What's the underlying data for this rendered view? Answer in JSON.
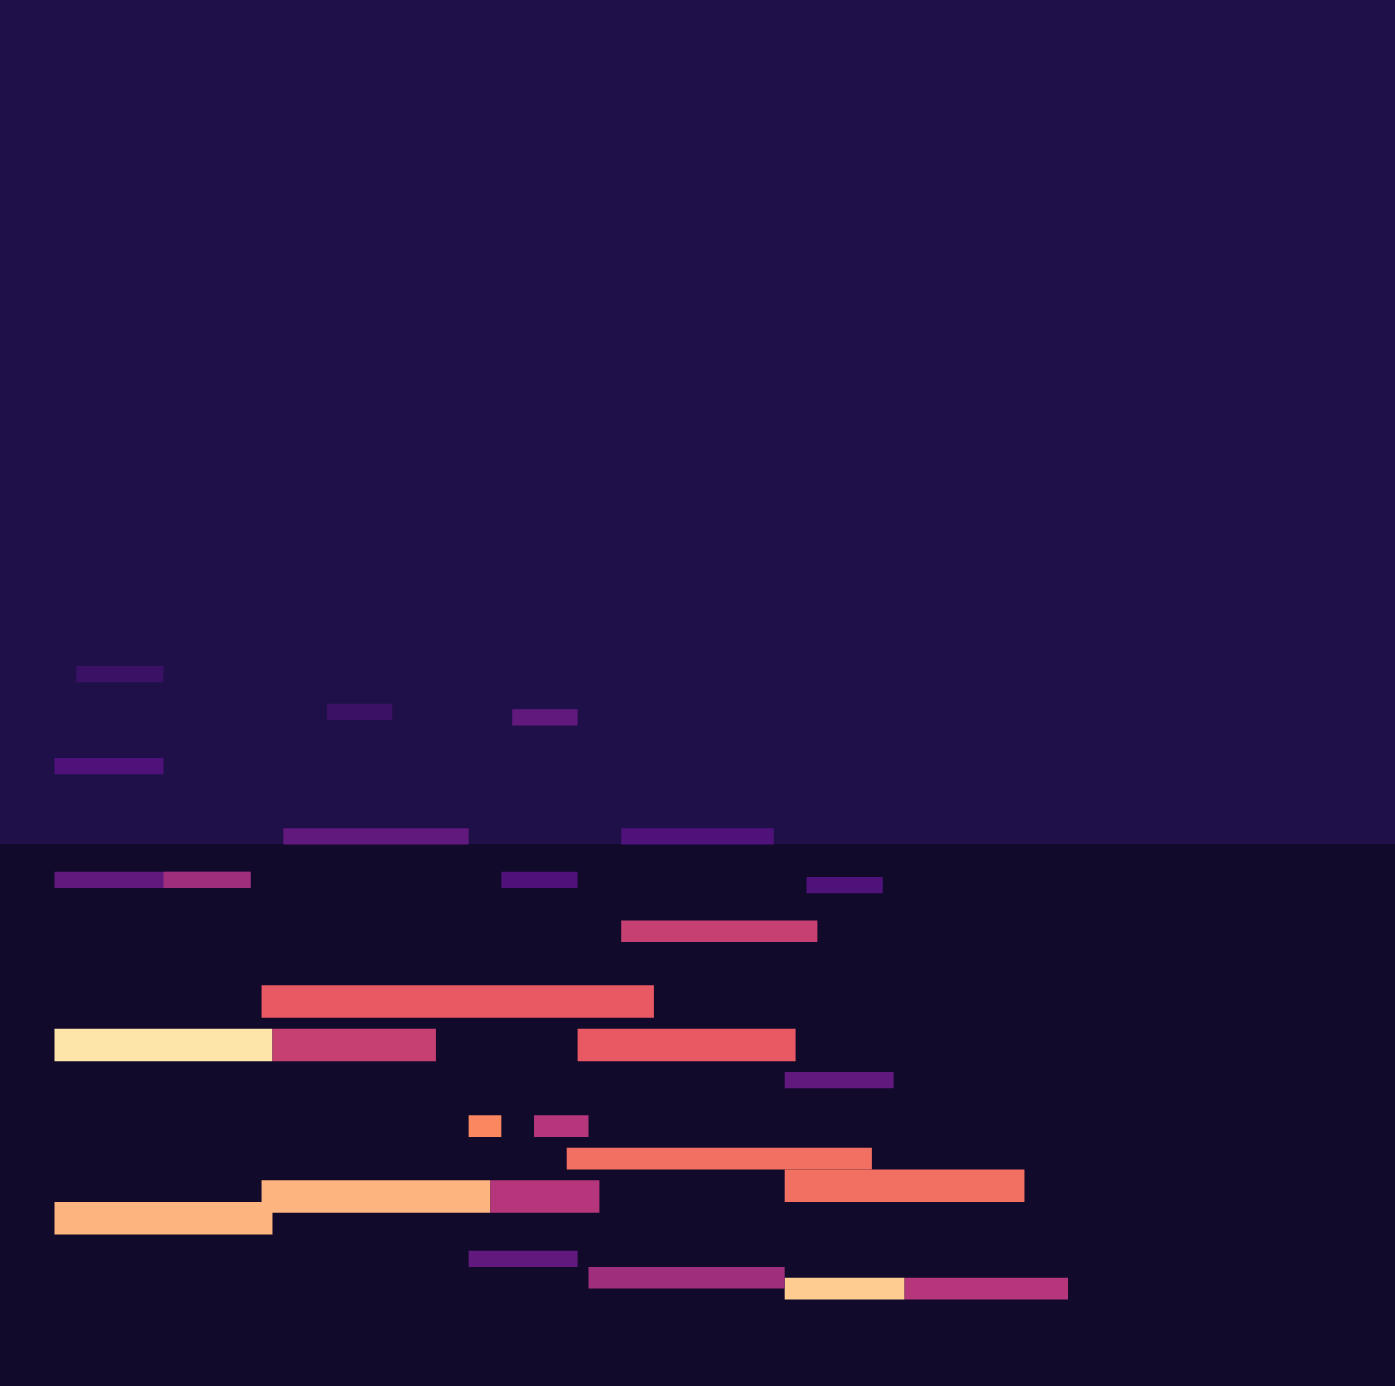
{
  "chart_data": {
    "type": "heatmap",
    "xlim": [
      0,
      128
    ],
    "ylim": [
      0,
      128
    ],
    "tick_labels": false,
    "value_range": [
      0,
      1
    ],
    "background": [
      {
        "y0": 0,
        "y1": 50,
        "value": 0.08
      },
      {
        "y0": 50,
        "y1": 128,
        "value": 0.14
      }
    ],
    "segments": [
      {
        "x0": 5,
        "x1": 25,
        "y0": 30,
        "y1": 33,
        "value": 0.95
      },
      {
        "x0": 25,
        "x1": 40,
        "y0": 30,
        "y1": 33,
        "value": 0.55
      },
      {
        "x0": 5,
        "x1": 25,
        "y0": 14,
        "y1": 17,
        "value": 0.85
      },
      {
        "x0": 24,
        "x1": 45,
        "y0": 16,
        "y1": 19,
        "value": 0.85
      },
      {
        "x0": 45,
        "x1": 55,
        "y0": 16,
        "y1": 19,
        "value": 0.5
      },
      {
        "x0": 24,
        "x1": 60,
        "y0": 34,
        "y1": 37,
        "value": 0.65
      },
      {
        "x0": 53,
        "x1": 73,
        "y0": 30,
        "y1": 33,
        "value": 0.65
      },
      {
        "x0": 57,
        "x1": 75,
        "y0": 41,
        "y1": 43,
        "value": 0.55
      },
      {
        "x0": 43,
        "x1": 46,
        "y0": 23,
        "y1": 25,
        "value": 0.75
      },
      {
        "x0": 49,
        "x1": 54,
        "y0": 23,
        "y1": 25,
        "value": 0.5
      },
      {
        "x0": 52,
        "x1": 80,
        "y0": 20,
        "y1": 22,
        "value": 0.7
      },
      {
        "x0": 72,
        "x1": 94,
        "y0": 17,
        "y1": 20,
        "value": 0.7
      },
      {
        "x0": 72,
        "x1": 83,
        "y0": 8,
        "y1": 10,
        "value": 0.9
      },
      {
        "x0": 83,
        "x1": 98,
        "y0": 8,
        "y1": 10,
        "value": 0.5
      },
      {
        "x0": 54,
        "x1": 72,
        "y0": 9,
        "y1": 11,
        "value": 0.45
      },
      {
        "x0": 43,
        "x1": 53,
        "y0": 11,
        "y1": 12.5,
        "value": 0.3
      },
      {
        "x0": 5,
        "x1": 23,
        "y0": 46,
        "y1": 47.5,
        "value": 0.3
      },
      {
        "x0": 15,
        "x1": 23,
        "y0": 46,
        "y1": 47.5,
        "value": 0.45
      },
      {
        "x0": 26,
        "x1": 43,
        "y0": 50,
        "y1": 51.5,
        "value": 0.3
      },
      {
        "x0": 57,
        "x1": 71,
        "y0": 50,
        "y1": 51.5,
        "value": 0.25
      },
      {
        "x0": 5,
        "x1": 15,
        "y0": 56.5,
        "y1": 58,
        "value": 0.25
      },
      {
        "x0": 47,
        "x1": 53,
        "y0": 61,
        "y1": 62.5,
        "value": 0.3
      },
      {
        "x0": 30,
        "x1": 36,
        "y0": 61.5,
        "y1": 63,
        "value": 0.2
      },
      {
        "x0": 7,
        "x1": 15,
        "y0": 65,
        "y1": 66.5,
        "value": 0.2
      },
      {
        "x0": 72,
        "x1": 82,
        "y0": 27.5,
        "y1": 29,
        "value": 0.3
      },
      {
        "x0": 46,
        "x1": 53,
        "y0": 46,
        "y1": 47.5,
        "value": 0.25
      },
      {
        "x0": 74,
        "x1": 81,
        "y0": 45.5,
        "y1": 47,
        "value": 0.25
      }
    ]
  }
}
